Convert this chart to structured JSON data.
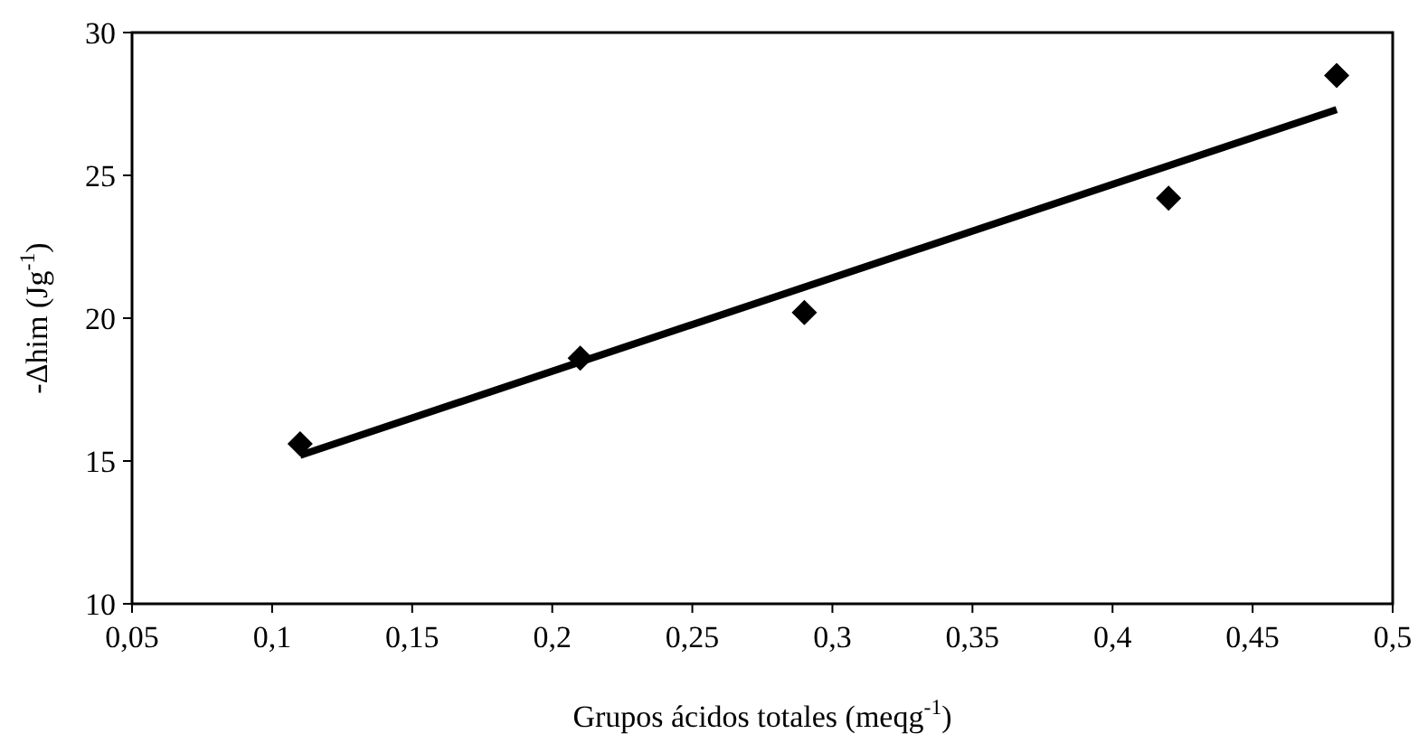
{
  "chart_data": {
    "type": "scatter",
    "xlabel": "Grupos ácidos totales (meqg$^{-1}$)",
    "ylabel": "-Δhim (Jg$^{-1}$)",
    "xlim": [
      0.05,
      0.5
    ],
    "xticks": [
      {
        "value": 0.05,
        "label": "0,05"
      },
      {
        "value": 0.1,
        "label": "0,1"
      },
      {
        "value": 0.15,
        "label": "0,15"
      },
      {
        "value": 0.2,
        "label": "0,2"
      },
      {
        "value": 0.25,
        "label": "0,25"
      },
      {
        "value": 0.3,
        "label": "0,3"
      },
      {
        "value": 0.35,
        "label": "0,35"
      },
      {
        "value": 0.4,
        "label": "0,4"
      },
      {
        "value": 0.45,
        "label": "0,45"
      },
      {
        "value": 0.5,
        "label": "0,5"
      }
    ],
    "ylim": [
      10,
      30
    ],
    "yticks": [
      10,
      15,
      20,
      25,
      30
    ],
    "grid": false,
    "series": [
      {
        "color": "#000000",
        "marker": "diamond",
        "x": [
          0.11,
          0.21,
          0.29,
          0.42,
          0.48
        ],
        "values": [
          15.6,
          18.6,
          20.2,
          24.2,
          28.5
        ]
      },
      {
        "type": "line",
        "color": "#000000",
        "marker": "none",
        "line_style": "solid",
        "x": [
          0.11,
          0.48
        ],
        "values": [
          15.2,
          27.3
        ]
      }
    ]
  }
}
